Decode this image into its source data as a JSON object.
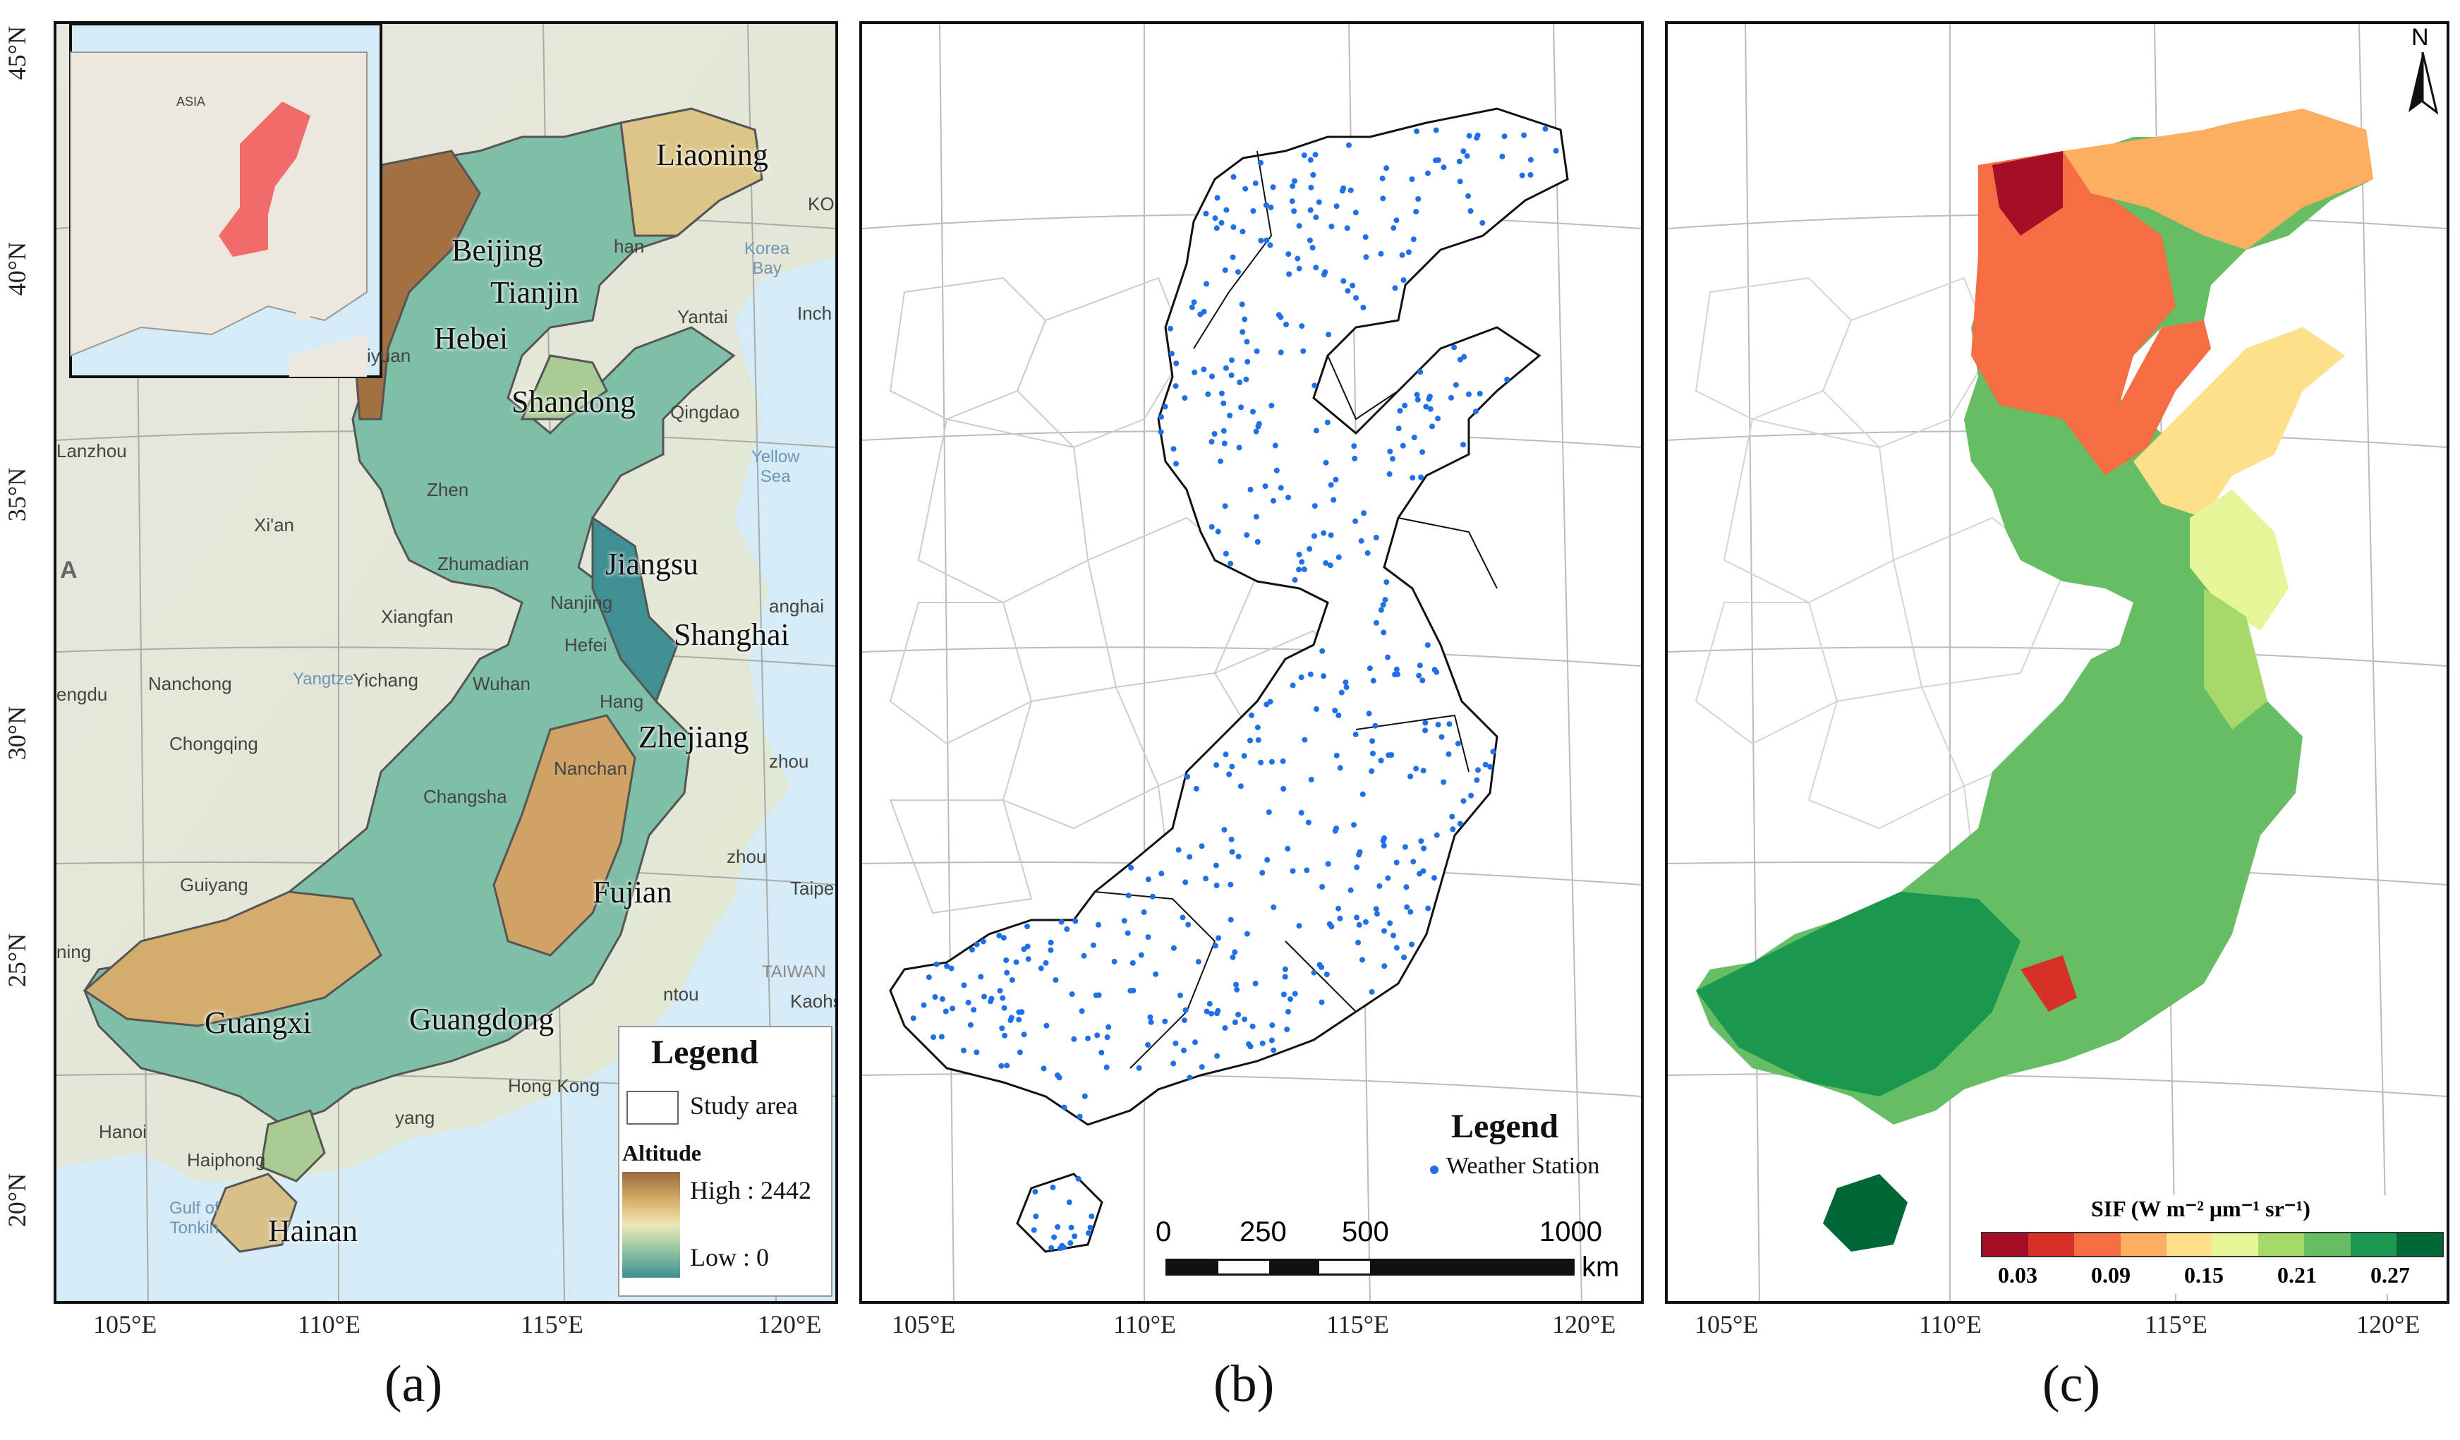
{
  "panel_a": {
    "caption": "(a)",
    "inset_labels": {
      "asia": "ASIA"
    },
    "provinces": {
      "liaoning": "Liaoning",
      "beijing": "Beijing",
      "tianjin": "Tianjin",
      "hebei": "Hebei",
      "shandong": "Shandong",
      "jiangsu": "Jiangsu",
      "shanghai": "Shanghai",
      "zhejiang": "Zhejiang",
      "fujian": "Fujian",
      "guangxi": "Guangxi",
      "guangdong": "Guangdong",
      "hainan": "Hainan"
    },
    "cities": {
      "lanzhou": "Lanzhou",
      "xian": "Xi'an",
      "zhumadian": "Zhumadian",
      "xiangfan": "Xiangfan",
      "nanjing": "Nanjing",
      "hefei": "Hefei",
      "nanchong": "Nanchong",
      "yichang": "Yichang",
      "wuhan": "Wuhan",
      "chongqing": "Chongqing",
      "changsha": "Changsha",
      "nanchang": "Nanchan",
      "guiyang": "Guiyang",
      "hanoi": "Hanoi",
      "haiphong": "Haiphong",
      "hongkong": "Hong Kong",
      "qingdao": "Qingdao",
      "yantai": "Yantai",
      "zhen": "Zhen",
      "hang": "Hang",
      "zhou1": "zhou",
      "zhou2": "zhou",
      "taipei": "Taipe",
      "kaohsiung": "Kaohsiu",
      "ntou": "ntou",
      "yang": "yang",
      "iyuan": "iyuan",
      "han": "han",
      "inch": "Inch",
      "ko": "KO",
      "enqdu": "engdu",
      "ning": "ning",
      "langhai": "anghai",
      "a_label": "A"
    },
    "seas": {
      "yellow_sea": "Yellow\nSea",
      "korea_bay": "Korea\nBay",
      "yangtze": "Yangtze",
      "gulf_of_tonkin": "Gulf of\nTonkin",
      "taiwan": "TAIWAN"
    },
    "legend": {
      "title": "Legend",
      "study_area": "Study area",
      "altitude": "Altitude",
      "high": "High : 2442",
      "low": "Low :  0",
      "colors": [
        "#9a6a3d",
        "#c99a5a",
        "#e6d28e",
        "#f3efc0",
        "#b7dba6",
        "#5ea99e",
        "#3f8f93"
      ]
    }
  },
  "panel_b": {
    "caption": "(b)",
    "legend": {
      "title": "Legend",
      "station": "Weather Station",
      "station_color": "#1f6fe8"
    },
    "scale": {
      "labels": [
        "0",
        "250",
        "500",
        "1000"
      ],
      "unit": "km"
    }
  },
  "panel_c": {
    "caption": "(c)",
    "north": "N",
    "colorbar": {
      "title": "SIF (W m⁻² μm⁻¹ sr⁻¹)",
      "labels": [
        "0.03",
        "0.09",
        "0.15",
        "0.21",
        "0.27"
      ],
      "colors": [
        "#a50f26",
        "#d73027",
        "#f46d43",
        "#fdae61",
        "#fee08b",
        "#e6f598",
        "#a6d96a",
        "#66bd63",
        "#1a9850",
        "#006837"
      ]
    }
  },
  "axes": {
    "lat_labels": [
      "45°N",
      "40°N",
      "35°N",
      "30°N",
      "25°N",
      "20°N"
    ],
    "lon_labels": [
      "105°E",
      "110°E",
      "115°E",
      "120°E"
    ]
  }
}
